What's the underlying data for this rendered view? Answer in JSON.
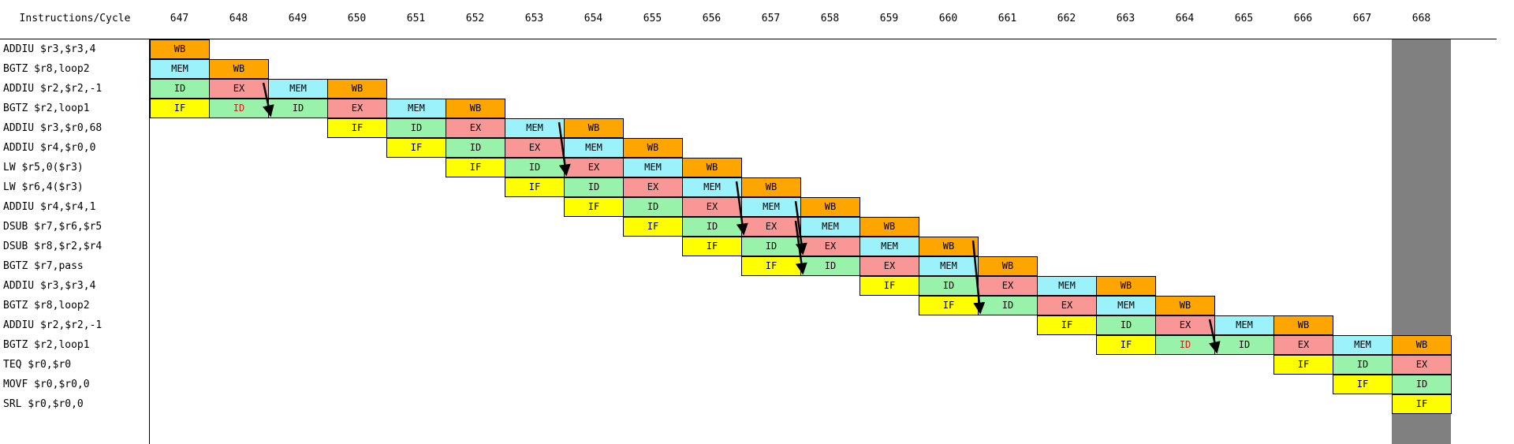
{
  "header": {
    "corner_label": "Instructions/Cycle",
    "cycles": [
      "647",
      "648",
      "649",
      "650",
      "651",
      "652",
      "653",
      "654",
      "655",
      "656",
      "657",
      "658",
      "659",
      "660",
      "661",
      "662",
      "663",
      "664",
      "665",
      "666",
      "667",
      "668"
    ]
  },
  "highlighted_cycle": "668",
  "colors": {
    "IF": "#ffff00",
    "ID": "#99f2aa",
    "EX": "#f99797",
    "MEM": "#9cf2fb",
    "WB": "#ffa500",
    "stall_text": "#e01b1b",
    "highlight": "#808080"
  },
  "instructions": [
    {
      "text": "ADDIU $r3,$r3,4",
      "stages": [
        {
          "cycle": "647",
          "stage": "WB"
        }
      ]
    },
    {
      "text": "BGTZ $r8,loop2",
      "stages": [
        {
          "cycle": "647",
          "stage": "MEM"
        },
        {
          "cycle": "648",
          "stage": "WB"
        }
      ]
    },
    {
      "text": "ADDIU $r2,$r2,-1",
      "stages": [
        {
          "cycle": "647",
          "stage": "ID"
        },
        {
          "cycle": "648",
          "stage": "EX"
        },
        {
          "cycle": "649",
          "stage": "MEM"
        },
        {
          "cycle": "650",
          "stage": "WB"
        }
      ]
    },
    {
      "text": "BGTZ $r2,loop1",
      "stages": [
        {
          "cycle": "647",
          "stage": "IF"
        },
        {
          "cycle": "648",
          "stage": "ID",
          "stall": true
        },
        {
          "cycle": "649",
          "stage": "ID"
        },
        {
          "cycle": "650",
          "stage": "EX"
        },
        {
          "cycle": "651",
          "stage": "MEM"
        },
        {
          "cycle": "652",
          "stage": "WB"
        }
      ]
    },
    {
      "text": "ADDIU $r3,$r0,68",
      "stages": [
        {
          "cycle": "650",
          "stage": "IF"
        },
        {
          "cycle": "651",
          "stage": "ID"
        },
        {
          "cycle": "652",
          "stage": "EX"
        },
        {
          "cycle": "653",
          "stage": "MEM"
        },
        {
          "cycle": "654",
          "stage": "WB"
        }
      ]
    },
    {
      "text": "ADDIU $r4,$r0,0",
      "stages": [
        {
          "cycle": "651",
          "stage": "IF"
        },
        {
          "cycle": "652",
          "stage": "ID"
        },
        {
          "cycle": "653",
          "stage": "EX"
        },
        {
          "cycle": "654",
          "stage": "MEM"
        },
        {
          "cycle": "655",
          "stage": "WB"
        }
      ]
    },
    {
      "text": "LW $r5,0($r3)",
      "stages": [
        {
          "cycle": "652",
          "stage": "IF"
        },
        {
          "cycle": "653",
          "stage": "ID"
        },
        {
          "cycle": "654",
          "stage": "EX"
        },
        {
          "cycle": "655",
          "stage": "MEM"
        },
        {
          "cycle": "656",
          "stage": "WB"
        }
      ]
    },
    {
      "text": "LW $r6,4($r3)",
      "stages": [
        {
          "cycle": "653",
          "stage": "IF"
        },
        {
          "cycle": "654",
          "stage": "ID"
        },
        {
          "cycle": "655",
          "stage": "EX"
        },
        {
          "cycle": "656",
          "stage": "MEM"
        },
        {
          "cycle": "657",
          "stage": "WB"
        }
      ]
    },
    {
      "text": "ADDIU $r4,$r4,1",
      "stages": [
        {
          "cycle": "654",
          "stage": "IF"
        },
        {
          "cycle": "655",
          "stage": "ID"
        },
        {
          "cycle": "656",
          "stage": "EX"
        },
        {
          "cycle": "657",
          "stage": "MEM"
        },
        {
          "cycle": "658",
          "stage": "WB"
        }
      ]
    },
    {
      "text": "DSUB $r7,$r6,$r5",
      "stages": [
        {
          "cycle": "655",
          "stage": "IF"
        },
        {
          "cycle": "656",
          "stage": "ID"
        },
        {
          "cycle": "657",
          "stage": "EX"
        },
        {
          "cycle": "658",
          "stage": "MEM"
        },
        {
          "cycle": "659",
          "stage": "WB"
        }
      ]
    },
    {
      "text": "DSUB $r8,$r2,$r4",
      "stages": [
        {
          "cycle": "656",
          "stage": "IF"
        },
        {
          "cycle": "657",
          "stage": "ID"
        },
        {
          "cycle": "658",
          "stage": "EX"
        },
        {
          "cycle": "659",
          "stage": "MEM"
        },
        {
          "cycle": "660",
          "stage": "WB"
        }
      ]
    },
    {
      "text": "BGTZ $r7,pass",
      "stages": [
        {
          "cycle": "657",
          "stage": "IF"
        },
        {
          "cycle": "658",
          "stage": "ID"
        },
        {
          "cycle": "659",
          "stage": "EX"
        },
        {
          "cycle": "660",
          "stage": "MEM"
        },
        {
          "cycle": "661",
          "stage": "WB"
        }
      ]
    },
    {
      "text": "ADDIU $r3,$r3,4",
      "stages": [
        {
          "cycle": "659",
          "stage": "IF"
        },
        {
          "cycle": "660",
          "stage": "ID"
        },
        {
          "cycle": "661",
          "stage": "EX"
        },
        {
          "cycle": "662",
          "stage": "MEM"
        },
        {
          "cycle": "663",
          "stage": "WB"
        }
      ]
    },
    {
      "text": "BGTZ $r8,loop2",
      "stages": [
        {
          "cycle": "660",
          "stage": "IF"
        },
        {
          "cycle": "661",
          "stage": "ID"
        },
        {
          "cycle": "662",
          "stage": "EX"
        },
        {
          "cycle": "663",
          "stage": "MEM"
        },
        {
          "cycle": "664",
          "stage": "WB"
        }
      ]
    },
    {
      "text": "ADDIU $r2,$r2,-1",
      "stages": [
        {
          "cycle": "662",
          "stage": "IF"
        },
        {
          "cycle": "663",
          "stage": "ID"
        },
        {
          "cycle": "664",
          "stage": "EX"
        },
        {
          "cycle": "665",
          "stage": "MEM"
        },
        {
          "cycle": "666",
          "stage": "WB"
        }
      ]
    },
    {
      "text": "BGTZ $r2,loop1",
      "stages": [
        {
          "cycle": "663",
          "stage": "IF"
        },
        {
          "cycle": "664",
          "stage": "ID",
          "stall": true
        },
        {
          "cycle": "665",
          "stage": "ID"
        },
        {
          "cycle": "666",
          "stage": "EX"
        },
        {
          "cycle": "667",
          "stage": "MEM"
        },
        {
          "cycle": "668",
          "stage": "WB"
        }
      ]
    },
    {
      "text": "TEQ $r0,$r0",
      "stages": [
        {
          "cycle": "666",
          "stage": "IF"
        },
        {
          "cycle": "667",
          "stage": "ID"
        },
        {
          "cycle": "668",
          "stage": "EX"
        }
      ]
    },
    {
      "text": "MOVF $r0,$r0,0",
      "stages": [
        {
          "cycle": "667",
          "stage": "IF"
        },
        {
          "cycle": "668",
          "stage": "ID"
        }
      ]
    },
    {
      "text": "SRL $r0,$r0,0",
      "stages": [
        {
          "cycle": "668",
          "stage": "IF"
        }
      ]
    }
  ],
  "forwarding_arrows": [
    {
      "from": {
        "row": 2,
        "cycle": "648"
      },
      "to": {
        "row": 3,
        "cycle": "649"
      }
    },
    {
      "from": {
        "row": 4,
        "cycle": "653"
      },
      "to": {
        "row": 6,
        "cycle": "654"
      }
    },
    {
      "from": {
        "row": 7,
        "cycle": "656"
      },
      "to": {
        "row": 9,
        "cycle": "657"
      }
    },
    {
      "from": {
        "row": 8,
        "cycle": "657"
      },
      "to": {
        "row": 10,
        "cycle": "658"
      }
    },
    {
      "from": {
        "row": 9,
        "cycle": "657"
      },
      "to": {
        "row": 11,
        "cycle": "658"
      }
    },
    {
      "from": {
        "row": 10,
        "cycle": "660"
      },
      "to": {
        "row": 13,
        "cycle": "661"
      }
    },
    {
      "from": {
        "row": 14,
        "cycle": "664"
      },
      "to": {
        "row": 15,
        "cycle": "665"
      }
    }
  ]
}
